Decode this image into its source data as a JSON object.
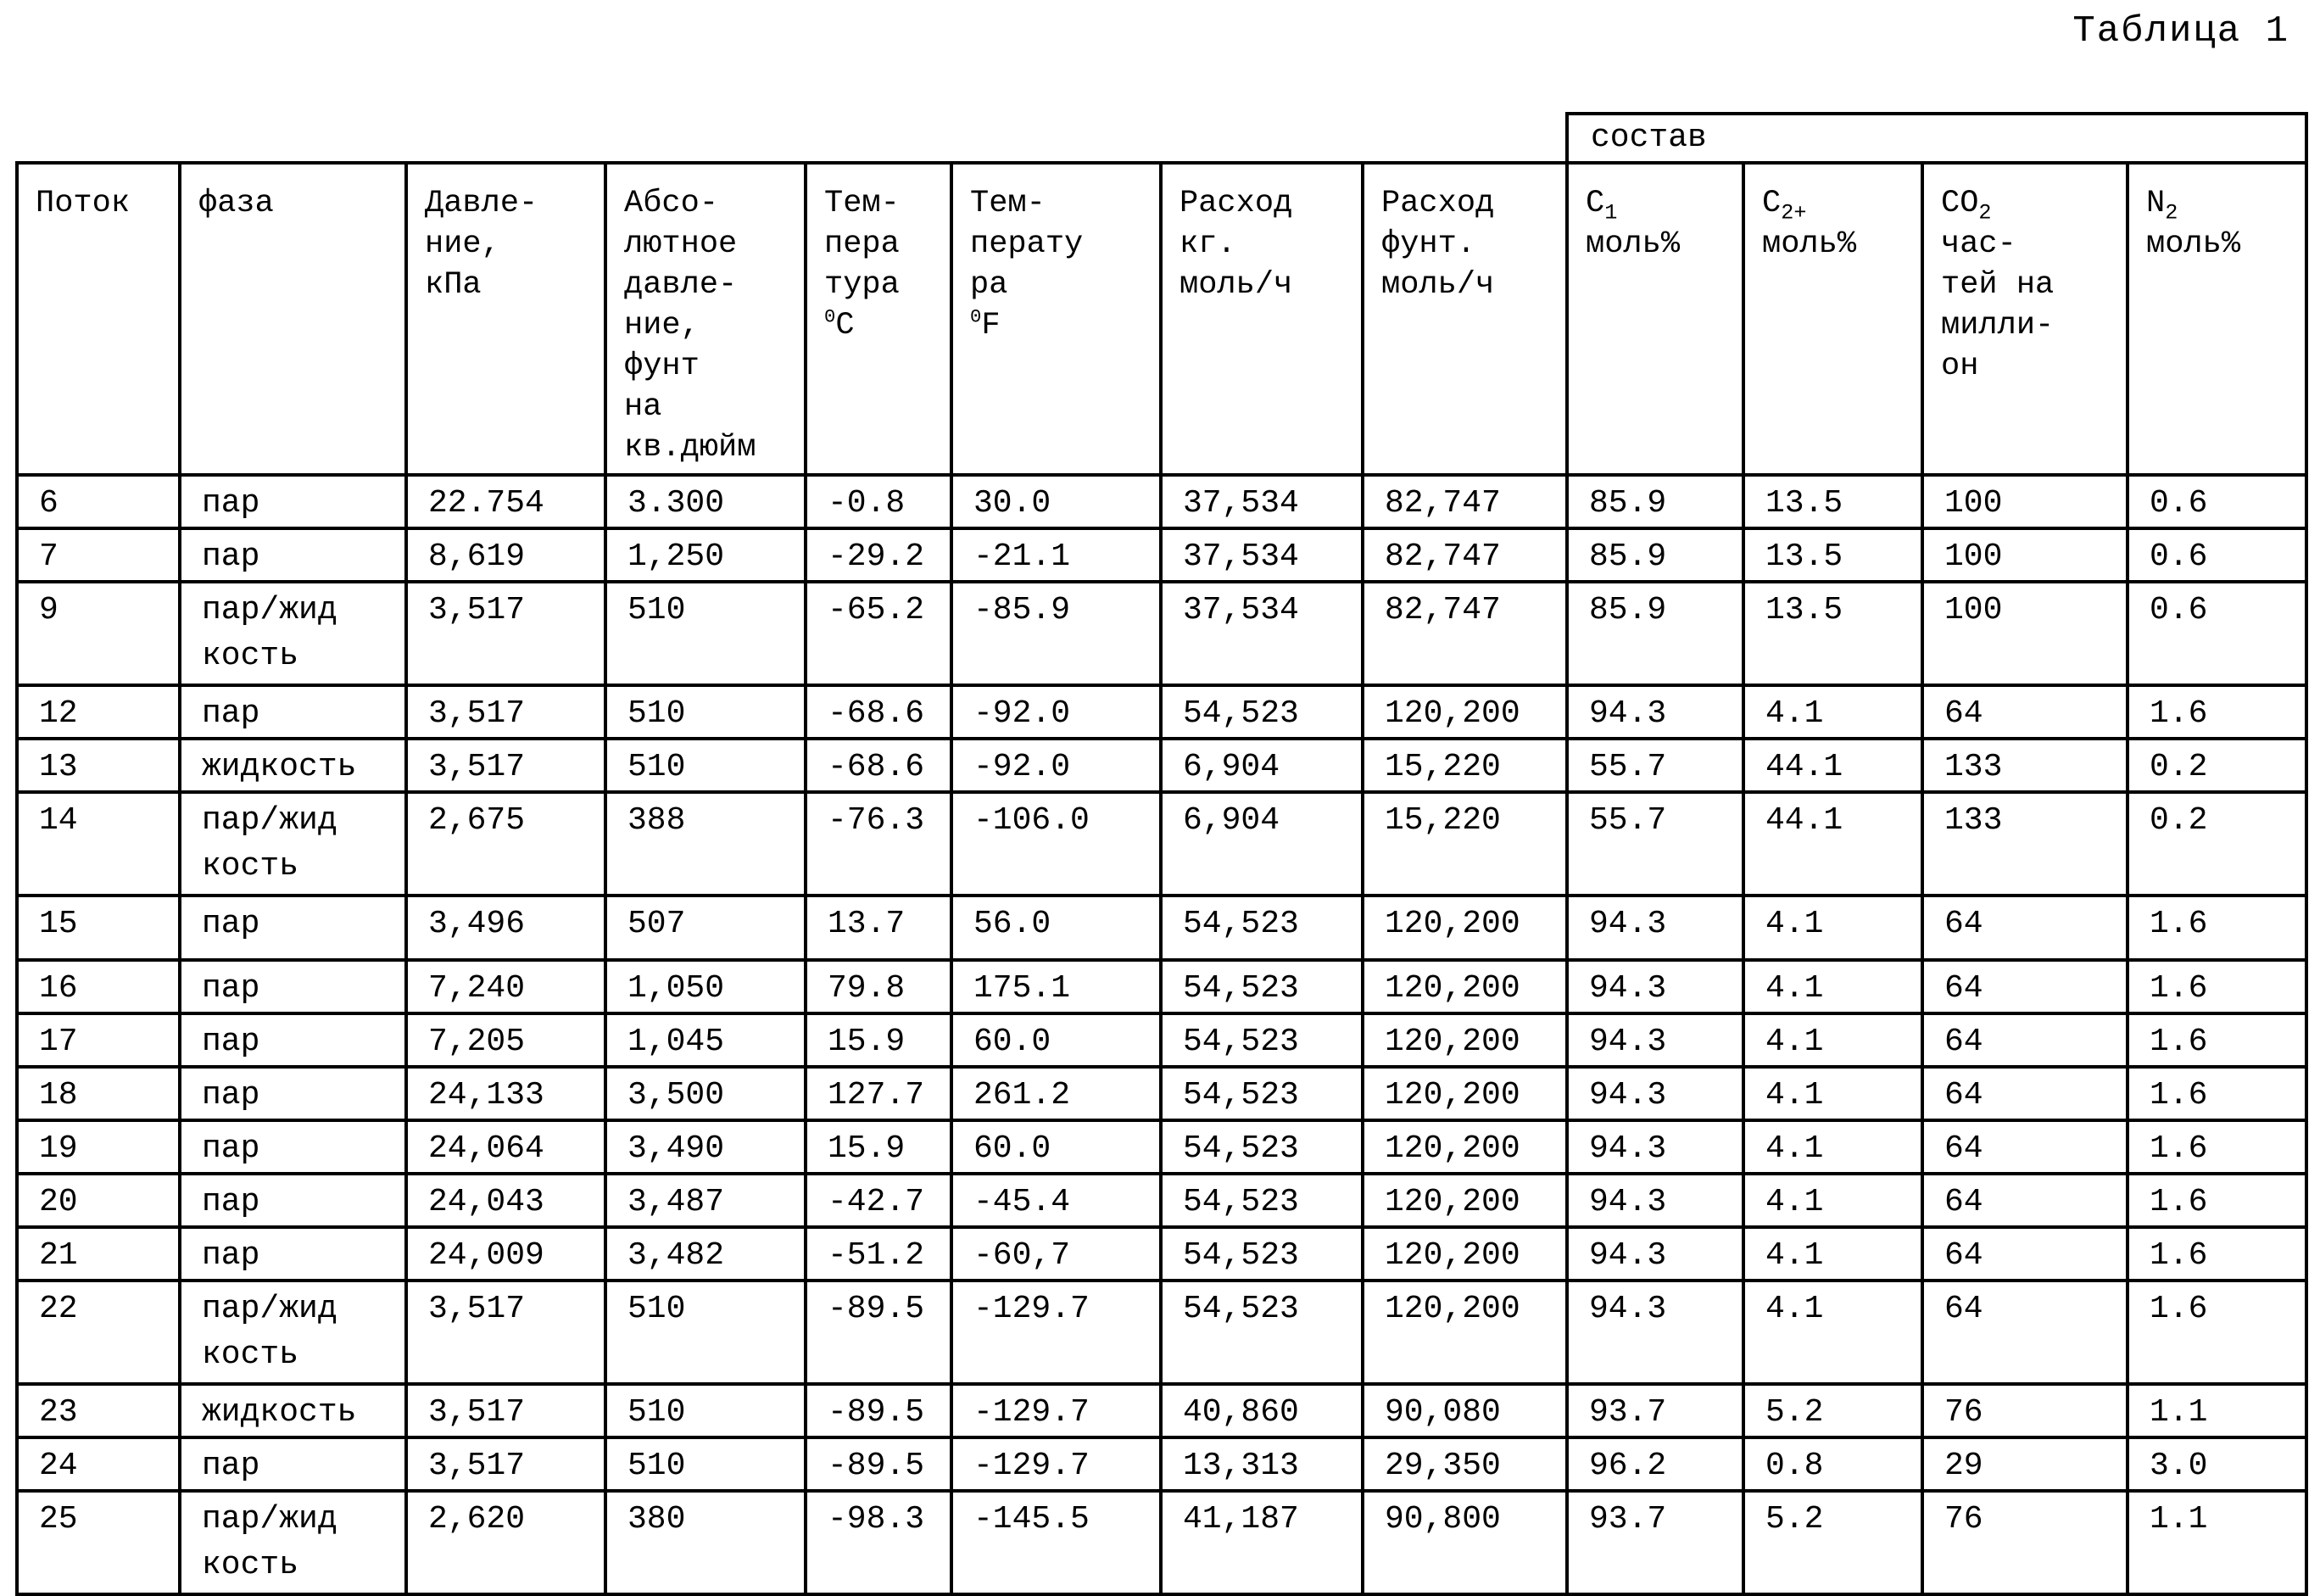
{
  "title": "Таблица 1",
  "table": {
    "composition_header": "состав",
    "columns": [
      {
        "id": "stream",
        "lines": [
          "Поток"
        ]
      },
      {
        "id": "phase",
        "lines": [
          "фаза"
        ]
      },
      {
        "id": "pressure_kpa",
        "lines": [
          "Давле-",
          "ние,",
          "кПа"
        ]
      },
      {
        "id": "pressure_psia",
        "lines": [
          "Абсо-",
          "лютное",
          "давле-",
          "ние,",
          "фунт",
          "на",
          "кв.дюйм"
        ]
      },
      {
        "id": "temp_c",
        "lines": [
          "Тем-",
          "пера",
          "тура",
          "^0^C"
        ]
      },
      {
        "id": "temp_f",
        "lines": [
          "Тем-",
          "перату",
          "ра",
          "^0^F"
        ]
      },
      {
        "id": "flow_kgmol",
        "lines": [
          "Расход",
          "кг.",
          "моль/ч"
        ]
      },
      {
        "id": "flow_lbmol",
        "lines": [
          "Расход",
          "фунт.",
          "моль/ч"
        ]
      },
      {
        "id": "c1",
        "lines": [
          "C{1}",
          "моль%"
        ]
      },
      {
        "id": "c2plus",
        "lines": [
          "C{2+}",
          "моль%"
        ]
      },
      {
        "id": "co2",
        "lines": [
          "CO{2}",
          "час-",
          "тей на",
          "милли-",
          "он"
        ]
      },
      {
        "id": "n2",
        "lines": [
          "N{2}",
          "моль%"
        ]
      }
    ],
    "rows": [
      {
        "stream": "6",
        "phase": [
          "пар"
        ],
        "pressure_kpa": "22.754",
        "pressure_psia": "3.300",
        "temp_c": "-0.8",
        "temp_f": "30.0",
        "flow_kgmol": "37,534",
        "flow_lbmol": "82,747",
        "c1": "85.9",
        "c2plus": "13.5",
        "co2": "100",
        "n2": "0.6"
      },
      {
        "stream": "7",
        "phase": [
          "пар"
        ],
        "pressure_kpa": "8,619",
        "pressure_psia": "1,250",
        "temp_c": "-29.2",
        "temp_f": "-21.1",
        "flow_kgmol": "37,534",
        "flow_lbmol": "82,747",
        "c1": "85.9",
        "c2plus": "13.5",
        "co2": "100",
        "n2": "0.6"
      },
      {
        "stream": "9",
        "phase": [
          "пар/жид",
          "кость"
        ],
        "pressure_kpa": "3,517",
        "pressure_psia": "510",
        "temp_c": "-65.2",
        "temp_f": "-85.9",
        "flow_kgmol": "37,534",
        "flow_lbmol": "82,747",
        "c1": "85.9",
        "c2plus": "13.5",
        "co2": "100",
        "n2": "0.6"
      },
      {
        "stream": "12",
        "phase": [
          "пар"
        ],
        "pressure_kpa": "3,517",
        "pressure_psia": "510",
        "temp_c": "-68.6",
        "temp_f": "-92.0",
        "flow_kgmol": "54,523",
        "flow_lbmol": "120,200",
        "c1": "94.3",
        "c2plus": "4.1",
        "co2": "64",
        "n2": "1.6"
      },
      {
        "stream": "13",
        "phase": [
          "жидкость"
        ],
        "pressure_kpa": "3,517",
        "pressure_psia": "510",
        "temp_c": "-68.6",
        "temp_f": "-92.0",
        "flow_kgmol": "6,904",
        "flow_lbmol": "15,220",
        "c1": "55.7",
        "c2plus": "44.1",
        "co2": "133",
        "n2": "0.2"
      },
      {
        "stream": "14",
        "phase": [
          "пар/жид",
          "кость"
        ],
        "pressure_kpa": "2,675",
        "pressure_psia": "388",
        "temp_c": "-76.3",
        "temp_f": "-106.0",
        "flow_kgmol": "6,904",
        "flow_lbmol": "15,220",
        "c1": "55.7",
        "c2plus": "44.1",
        "co2": "133",
        "n2": "0.2"
      },
      {
        "stream": "15",
        "phase": [
          "пар"
        ],
        "tall": true,
        "pressure_kpa": "3,496",
        "pressure_psia": "507",
        "temp_c": "13.7",
        "temp_f": "56.0",
        "flow_kgmol": "54,523",
        "flow_lbmol": "120,200",
        "c1": "94.3",
        "c2plus": "4.1",
        "co2": "64",
        "n2": "1.6"
      },
      {
        "stream": "16",
        "phase": [
          "пар"
        ],
        "pressure_kpa": "7,240",
        "pressure_psia": "1,050",
        "temp_c": "79.8",
        "temp_f": "175.1",
        "flow_kgmol": "54,523",
        "flow_lbmol": "120,200",
        "c1": "94.3",
        "c2plus": "4.1",
        "co2": "64",
        "n2": "1.6"
      },
      {
        "stream": "17",
        "phase": [
          "пар"
        ],
        "pressure_kpa": "7,205",
        "pressure_psia": "1,045",
        "temp_c": "15.9",
        "temp_f": "60.0",
        "flow_kgmol": "54,523",
        "flow_lbmol": "120,200",
        "c1": "94.3",
        "c2plus": "4.1",
        "co2": "64",
        "n2": "1.6"
      },
      {
        "stream": "18",
        "phase": [
          "пар"
        ],
        "pressure_kpa": "24,133",
        "pressure_psia": "3,500",
        "temp_c": "127.7",
        "temp_f": "261.2",
        "flow_kgmol": "54,523",
        "flow_lbmol": "120,200",
        "c1": "94.3",
        "c2plus": "4.1",
        "co2": "64",
        "n2": "1.6"
      },
      {
        "stream": "19",
        "phase": [
          "пар"
        ],
        "pressure_kpa": "24,064",
        "pressure_psia": "3,490",
        "temp_c": "15.9",
        "temp_f": "60.0",
        "flow_kgmol": "54,523",
        "flow_lbmol": "120,200",
        "c1": "94.3",
        "c2plus": "4.1",
        "co2": "64",
        "n2": "1.6"
      },
      {
        "stream": "20",
        "phase": [
          "пар"
        ],
        "pressure_kpa": "24,043",
        "pressure_psia": "3,487",
        "temp_c": "-42.7",
        "temp_f": "-45.4",
        "flow_kgmol": "54,523",
        "flow_lbmol": "120,200",
        "c1": "94.3",
        "c2plus": "4.1",
        "co2": "64",
        "n2": "1.6"
      },
      {
        "stream": "21",
        "phase": [
          "пар"
        ],
        "pressure_kpa": "24,009",
        "pressure_psia": "3,482",
        "temp_c": "-51.2",
        "temp_f": "-60,7",
        "flow_kgmol": "54,523",
        "flow_lbmol": "120,200",
        "c1": "94.3",
        "c2plus": "4.1",
        "co2": "64",
        "n2": "1.6"
      },
      {
        "stream": "22",
        "phase": [
          "пар/жид",
          "кость"
        ],
        "pressure_kpa": "3,517",
        "pressure_psia": "510",
        "temp_c": "-89.5",
        "temp_f": "-129.7",
        "flow_kgmol": "54,523",
        "flow_lbmol": "120,200",
        "c1": "94.3",
        "c2plus": "4.1",
        "co2": "64",
        "n2": "1.6"
      },
      {
        "stream": "23",
        "phase": [
          "жидкость"
        ],
        "pressure_kpa": "3,517",
        "pressure_psia": "510",
        "temp_c": "-89.5",
        "temp_f": "-129.7",
        "flow_kgmol": "40,860",
        "flow_lbmol": "90,080",
        "c1": "93.7",
        "c2plus": "5.2",
        "co2": "76",
        "n2": "1.1"
      },
      {
        "stream": "24",
        "phase": [
          "пар"
        ],
        "pressure_kpa": "3,517",
        "pressure_psia": "510",
        "temp_c": "-89.5",
        "temp_f": "-129.7",
        "flow_kgmol": "13,313",
        "flow_lbmol": "29,350",
        "c1": "96.2",
        "c2plus": "0.8",
        "co2": "29",
        "n2": "3.0"
      },
      {
        "stream": "25",
        "phase": [
          "пар/жид",
          "кость"
        ],
        "pressure_kpa": "2,620",
        "pressure_psia": "380",
        "temp_c": "-98.3",
        "temp_f": "-145.5",
        "flow_kgmol": "41,187",
        "flow_lbmol": "90,800",
        "c1": "93.7",
        "c2plus": "5.2",
        "co2": "76",
        "n2": "1.1"
      }
    ]
  }
}
